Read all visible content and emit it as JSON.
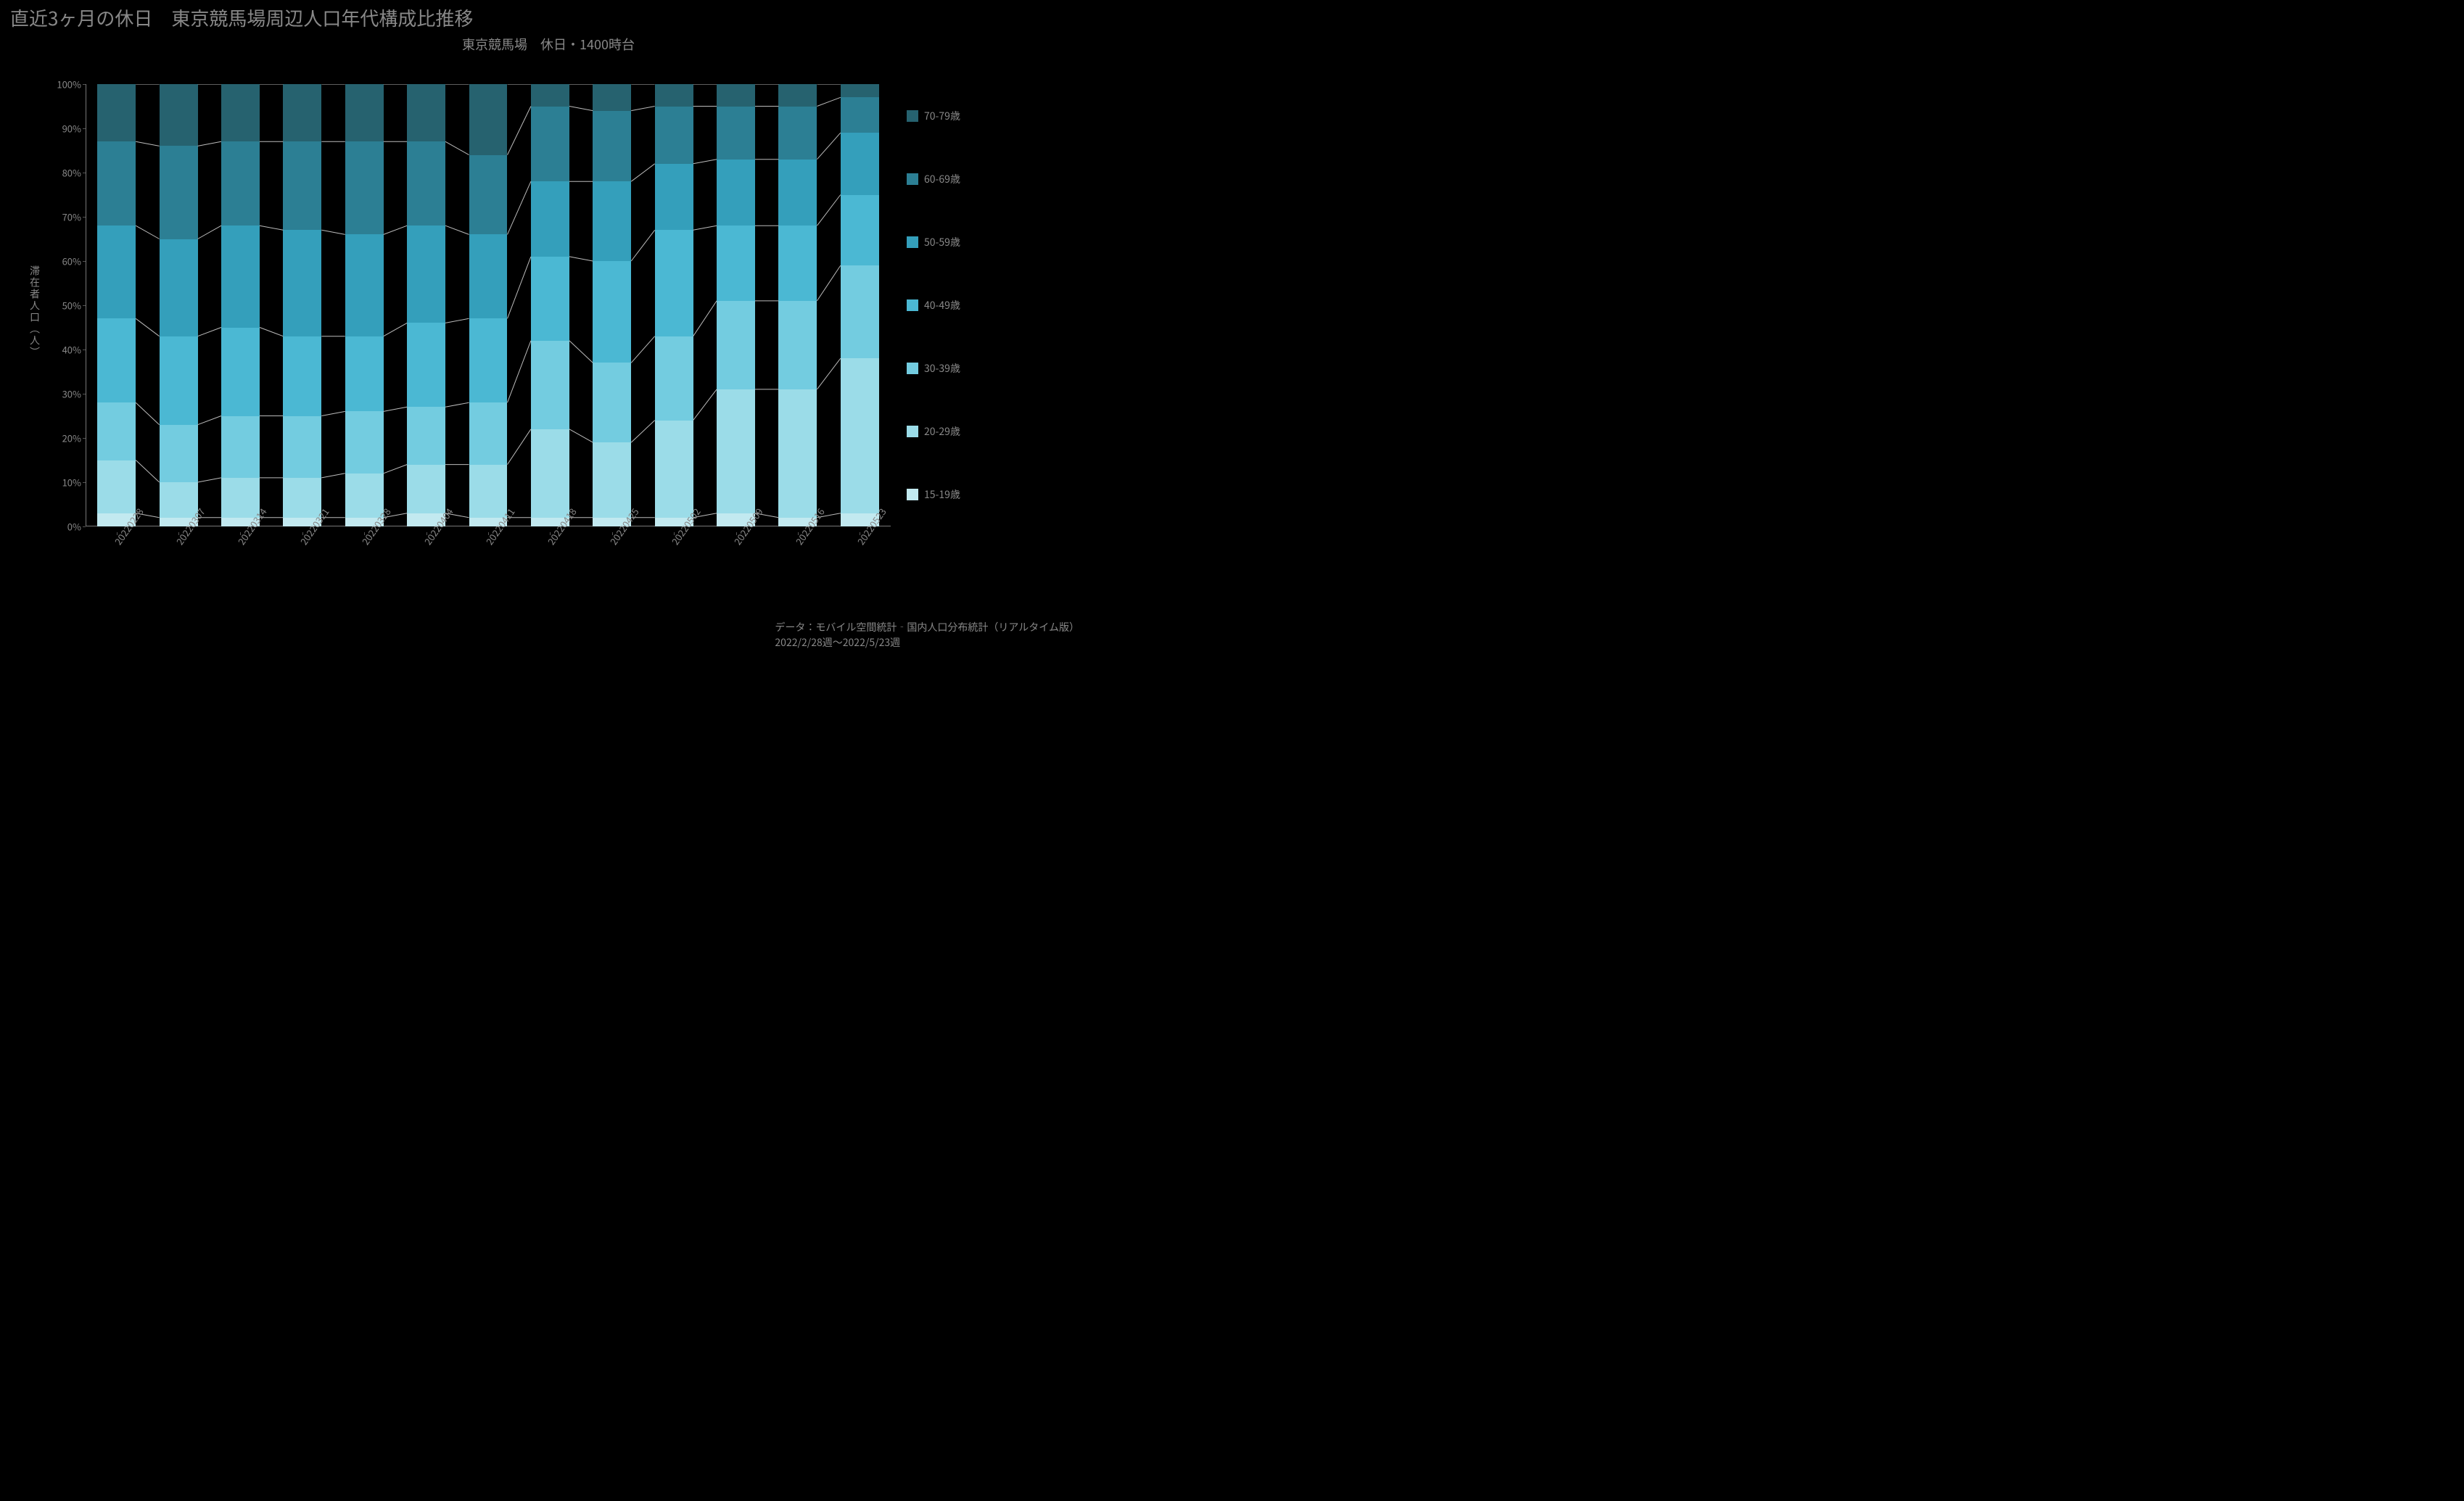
{
  "main_title": "直近3ヶ月の休日　東京競馬場周辺人口年代構成比推移",
  "subtitle": "東京競馬場　休日・1400時台",
  "y_axis_label": "滞在者人口（人）",
  "footnote_line1": "データ：モバイル空間統計‐国内人口分布統計（リアルタイム版）",
  "footnote_line2": "2022/2/28週～2022/5/23週",
  "chart": {
    "type": "stacked-bar-100",
    "background_color": "#000000",
    "axis_color": "#777777",
    "trend_line_color": "#bbbbbb",
    "trend_line_width": 1,
    "bar_width_ratio": 0.62,
    "y_ticks": [
      0,
      10,
      20,
      30,
      40,
      50,
      60,
      70,
      80,
      90,
      100
    ],
    "y_tick_suffix": "%",
    "categories": [
      "20220228",
      "20220307",
      "20220314",
      "20220321",
      "20220328",
      "20220404",
      "20220411",
      "20220418",
      "20220425",
      "20220502",
      "20220509",
      "20220516",
      "20220523"
    ],
    "series": [
      {
        "name": "15-19歳",
        "label": "15-19歳",
        "color": "#c2e9f0"
      },
      {
        "name": "20-29歳",
        "label": "20-29歳",
        "color": "#9bdce8"
      },
      {
        "name": "30-39歳",
        "label": "30-39歳",
        "color": "#73cce0"
      },
      {
        "name": "40-49歳",
        "label": "40-49歳",
        "color": "#4bb8d3"
      },
      {
        "name": "50-59歳",
        "label": "50-59歳",
        "color": "#349fbb"
      },
      {
        "name": "60-69歳",
        "label": "60-69歳",
        "color": "#2c7f94"
      },
      {
        "name": "70-79歳",
        "label": "70-79歳",
        "color": "#26626f"
      }
    ],
    "values": [
      [
        3,
        12,
        13,
        19,
        21,
        19,
        13
      ],
      [
        2,
        8,
        13,
        20,
        22,
        21,
        14
      ],
      [
        2,
        9,
        14,
        20,
        23,
        19,
        13
      ],
      [
        2,
        9,
        14,
        18,
        24,
        20,
        13
      ],
      [
        2,
        10,
        14,
        17,
        23,
        21,
        13
      ],
      [
        3,
        11,
        13,
        19,
        22,
        19,
        13
      ],
      [
        2,
        12,
        14,
        19,
        19,
        18,
        16
      ],
      [
        2,
        20,
        20,
        19,
        17,
        17,
        5
      ],
      [
        2,
        17,
        18,
        23,
        18,
        16,
        6
      ],
      [
        2,
        22,
        19,
        24,
        15,
        13,
        5
      ],
      [
        3,
        28,
        20,
        17,
        15,
        12,
        5
      ],
      [
        2,
        29,
        20,
        17,
        15,
        12,
        5
      ],
      [
        3,
        35,
        21,
        16,
        14,
        8,
        3
      ]
    ]
  },
  "legend_title_fontsize": 14
}
